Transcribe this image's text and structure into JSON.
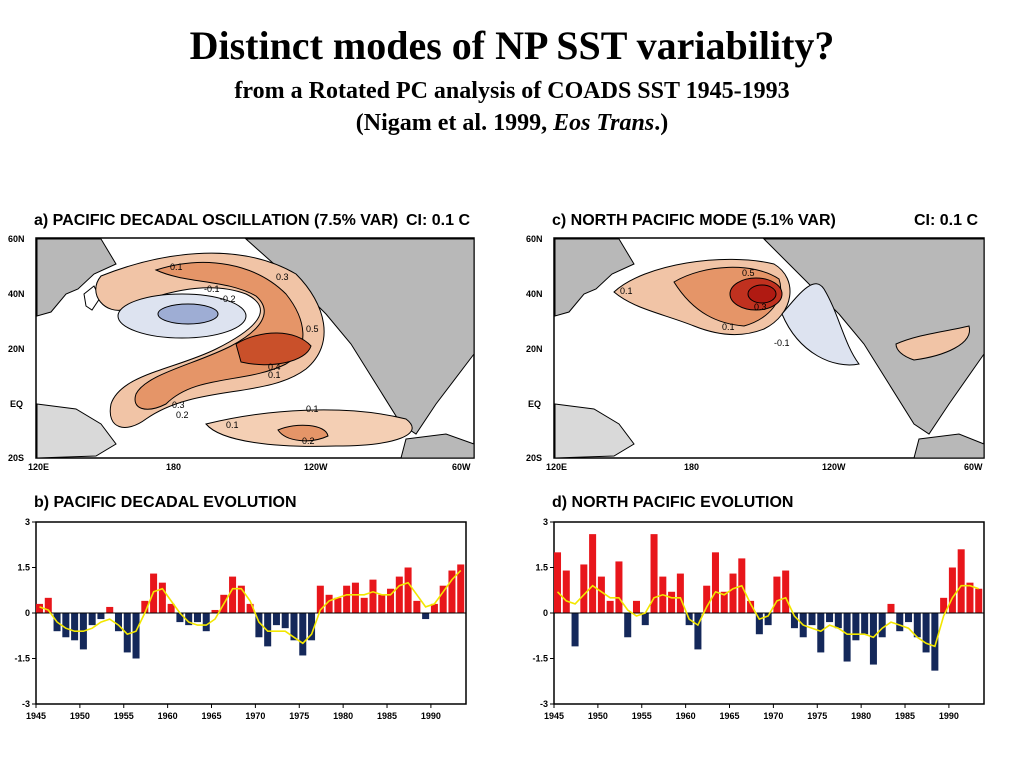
{
  "slide": {
    "title": "Distinct modes of NP SST variability?",
    "subtitle": "from a Rotated PC analysis of COADS SST 1945-1993",
    "citation_pre": "(Nigam et al. 1999, ",
    "citation_journal": "Eos Trans",
    "citation_post": ".)"
  },
  "maps": [
    {
      "title": "a) PACIFIC DECADAL OSCILLATION (7.5% VAR)",
      "ci": "CI: 0.1 C",
      "lat_labels": [
        "60N",
        "40N",
        "20N",
        "EQ",
        "20S"
      ],
      "lon_labels": [
        "120E",
        "180",
        "120W",
        "60W"
      ],
      "contour_labels": [
        "0.1",
        "0.3",
        "-0.1",
        "-0.2",
        "0.5",
        "0.4",
        "0.1",
        "0.3",
        "0.2",
        "0.1",
        "0.1",
        "0.2"
      ]
    },
    {
      "title": "c) NORTH PACIFIC MODE (5.1% VAR)",
      "ci": "CI: 0.1 C",
      "lat_labels": [
        "60N",
        "40N",
        "20N",
        "EQ",
        "20S"
      ],
      "lon_labels": [
        "120E",
        "180",
        "120W",
        "60W"
      ],
      "contour_labels": [
        "0.1",
        "0.5",
        "0.3",
        "0.1",
        "-0.1"
      ]
    }
  ],
  "colors": {
    "positive": "#e8161b",
    "negative": "#14285a",
    "smooth": "#f2e600",
    "warm_fill": "#e07a48",
    "cool_fill": "#a9b6d8",
    "land": "#b8b8b8"
  },
  "chart_data": [
    {
      "type": "bar",
      "title": "b) PACIFIC DECADAL EVOLUTION",
      "x_tick_labels": [
        "1945",
        "1950",
        "1955",
        "1960",
        "1965",
        "1970",
        "1975",
        "1980",
        "1985",
        "1990"
      ],
      "y_tick_labels": [
        "3",
        "1.5",
        "0",
        "-1.5",
        "-3"
      ],
      "ylim": [
        -3,
        3
      ],
      "xlim": [
        1945,
        1994
      ],
      "series": [
        {
          "x": [
            1945,
            1946,
            1947,
            1948,
            1949,
            1950,
            1951,
            1952,
            1953,
            1954,
            1955,
            1956,
            1957,
            1958,
            1959,
            1960,
            1961,
            1962,
            1963,
            1964,
            1965,
            1966,
            1967,
            1968,
            1969,
            1970,
            1971,
            1972,
            1973,
            1974,
            1975,
            1976,
            1977,
            1978,
            1979,
            1980,
            1981,
            1982,
            1983,
            1984,
            1985,
            1986,
            1987,
            1988,
            1989,
            1990,
            1991,
            1992,
            1993
          ],
          "values": [
            0.3,
            0.5,
            -0.6,
            -0.8,
            -0.9,
            -1.2,
            -0.4,
            -0.2,
            0.2,
            -0.6,
            -1.3,
            -1.5,
            0.4,
            1.3,
            1.0,
            0.3,
            -0.3,
            -0.4,
            -0.3,
            -0.6,
            0.1,
            0.6,
            1.2,
            0.9,
            0.3,
            -0.8,
            -1.1,
            -0.4,
            -0.5,
            -0.9,
            -1.4,
            -0.9,
            0.9,
            0.6,
            0.5,
            0.9,
            1.0,
            0.5,
            1.1,
            0.6,
            0.8,
            1.2,
            1.5,
            0.4,
            -0.2,
            0.3,
            0.9,
            1.4,
            1.6
          ]
        },
        {
          "x": [
            1945,
            1946,
            1947,
            1948,
            1949,
            1950,
            1951,
            1952,
            1953,
            1954,
            1955,
            1956,
            1957,
            1958,
            1959,
            1960,
            1961,
            1962,
            1963,
            1964,
            1965,
            1966,
            1967,
            1968,
            1969,
            1970,
            1971,
            1972,
            1973,
            1974,
            1975,
            1976,
            1977,
            1978,
            1979,
            1980,
            1981,
            1982,
            1983,
            1984,
            1985,
            1986,
            1987,
            1988,
            1989,
            1990,
            1991,
            1992,
            1993
          ],
          "values": [
            0.2,
            0.1,
            -0.3,
            -0.5,
            -0.6,
            -0.6,
            -0.5,
            -0.3,
            -0.2,
            -0.4,
            -0.7,
            -0.6,
            0.0,
            0.7,
            0.8,
            0.4,
            0.0,
            -0.3,
            -0.4,
            -0.4,
            -0.2,
            0.3,
            0.8,
            0.8,
            0.4,
            -0.3,
            -0.6,
            -0.6,
            -0.6,
            -0.8,
            -1.0,
            -0.7,
            0.1,
            0.4,
            0.5,
            0.6,
            0.6,
            0.6,
            0.7,
            0.6,
            0.6,
            0.9,
            1.0,
            0.6,
            0.2,
            0.3,
            0.7,
            1.1,
            1.4
          ]
        }
      ]
    },
    {
      "type": "bar",
      "title": "d) NORTH PACIFIC EVOLUTION",
      "x_tick_labels": [
        "1945",
        "1950",
        "1955",
        "1960",
        "1965",
        "1970",
        "1975",
        "1980",
        "1985",
        "1990"
      ],
      "y_tick_labels": [
        "3",
        "1.5",
        "0",
        "-1.5",
        "-3"
      ],
      "ylim": [
        -3,
        3
      ],
      "xlim": [
        1945,
        1994
      ],
      "series": [
        {
          "x": [
            1945,
            1946,
            1947,
            1948,
            1949,
            1950,
            1951,
            1952,
            1953,
            1954,
            1955,
            1956,
            1957,
            1958,
            1959,
            1960,
            1961,
            1962,
            1963,
            1964,
            1965,
            1966,
            1967,
            1968,
            1969,
            1970,
            1971,
            1972,
            1973,
            1974,
            1975,
            1976,
            1977,
            1978,
            1979,
            1980,
            1981,
            1982,
            1983,
            1984,
            1985,
            1986,
            1987,
            1988,
            1989,
            1990,
            1991,
            1992,
            1993
          ],
          "values": [
            2.0,
            1.4,
            -1.1,
            1.6,
            2.6,
            1.2,
            0.4,
            1.7,
            -0.8,
            0.4,
            -0.4,
            2.6,
            1.2,
            0.7,
            1.3,
            -0.4,
            -1.2,
            0.9,
            2.0,
            0.7,
            1.3,
            1.8,
            0.4,
            -0.7,
            -0.4,
            1.2,
            1.4,
            -0.5,
            -0.8,
            -0.4,
            -1.3,
            -0.3,
            -0.5,
            -1.6,
            -0.9,
            -0.7,
            -1.7,
            -0.8,
            0.3,
            -0.6,
            -0.3,
            -0.8,
            -1.3,
            -1.9,
            0.5,
            1.5,
            2.1,
            1.0,
            0.8
          ]
        },
        {
          "x": [
            1945,
            1946,
            1947,
            1948,
            1949,
            1950,
            1951,
            1952,
            1953,
            1954,
            1955,
            1956,
            1957,
            1958,
            1959,
            1960,
            1961,
            1962,
            1963,
            1964,
            1965,
            1966,
            1967,
            1968,
            1969,
            1970,
            1971,
            1972,
            1973,
            1974,
            1975,
            1976,
            1977,
            1978,
            1979,
            1980,
            1981,
            1982,
            1983,
            1984,
            1985,
            1986,
            1987,
            1988,
            1989,
            1990,
            1991,
            1992,
            1993
          ],
          "values": [
            0.7,
            0.4,
            0.3,
            0.6,
            0.9,
            0.7,
            0.5,
            0.5,
            0.1,
            -0.1,
            0.0,
            0.5,
            0.6,
            0.5,
            0.5,
            -0.2,
            -0.4,
            0.2,
            0.7,
            0.6,
            0.8,
            0.9,
            0.3,
            -0.2,
            -0.1,
            0.4,
            0.5,
            -0.1,
            -0.4,
            -0.5,
            -0.6,
            -0.4,
            -0.5,
            -0.7,
            -0.7,
            -0.7,
            -0.8,
            -0.5,
            -0.3,
            -0.4,
            -0.5,
            -0.8,
            -1.0,
            -1.1,
            -0.1,
            0.5,
            0.9,
            0.9,
            0.8
          ]
        }
      ]
    }
  ]
}
